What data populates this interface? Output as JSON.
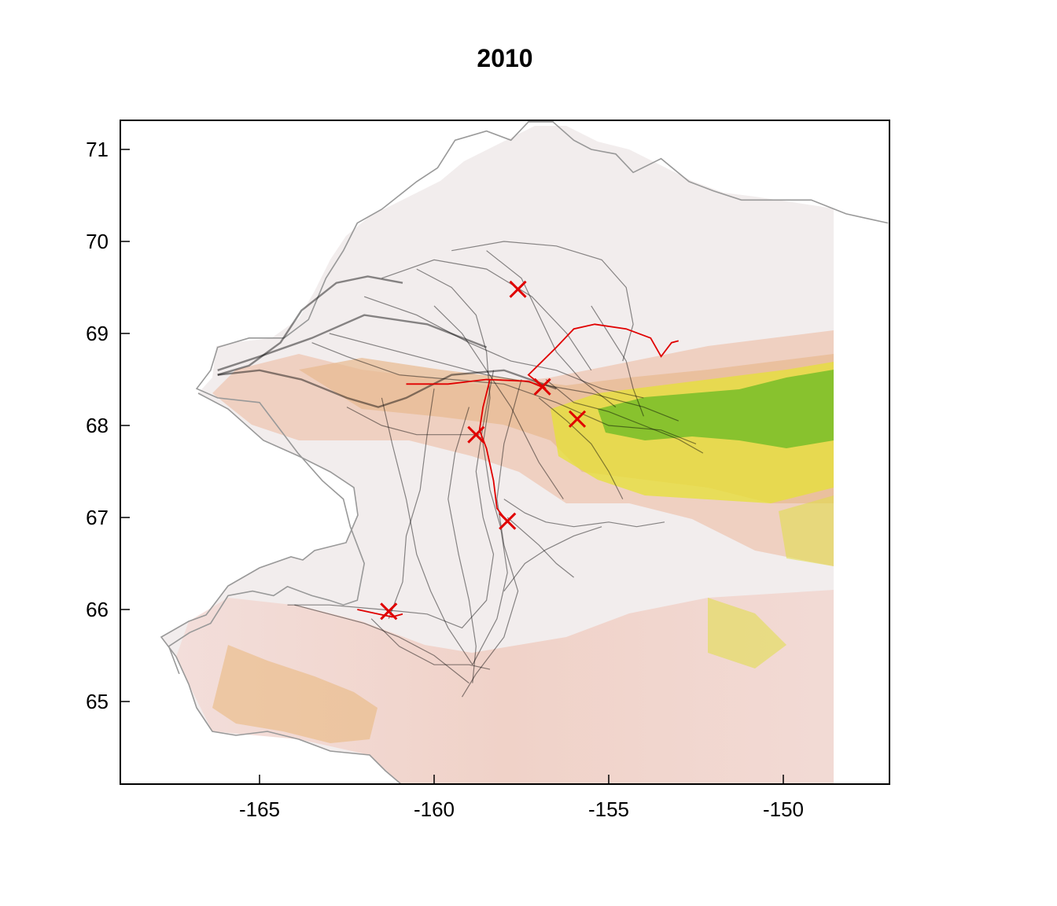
{
  "title": "2010",
  "axes": {
    "x_ticks": [
      -165,
      -160,
      -155,
      -150
    ],
    "x_tick_labels": [
      "-165",
      "-160",
      "-155",
      "-150"
    ],
    "y_ticks": [
      65,
      66,
      67,
      68,
      69,
      70,
      71
    ],
    "y_tick_labels": [
      "65",
      "66",
      "67",
      "68",
      "69",
      "70",
      "71"
    ],
    "xlim": [
      -169,
      -147
    ],
    "ylim": [
      64.1,
      71.3
    ]
  },
  "colors": {
    "track": "#000000",
    "highlight_track": "#e00000",
    "marker": "#e00000",
    "coastline": "#999999"
  },
  "markers": [
    {
      "lon": -157.6,
      "lat": 69.48
    },
    {
      "lon": -156.9,
      "lat": 68.42
    },
    {
      "lon": -155.9,
      "lat": 68.07
    },
    {
      "lon": -158.8,
      "lat": 67.9
    },
    {
      "lon": -157.9,
      "lat": 66.96
    },
    {
      "lon": -161.3,
      "lat": 65.98
    }
  ],
  "highlight_track": [
    [
      -160.8,
      68.45
    ],
    [
      -159.6,
      68.45
    ],
    [
      -158.5,
      68.5
    ],
    [
      -157.3,
      68.48
    ],
    [
      -156.8,
      68.4
    ],
    [
      -157.3,
      68.55
    ],
    [
      -156.5,
      68.85
    ],
    [
      -156.0,
      69.05
    ],
    [
      -155.4,
      69.1
    ],
    [
      -154.5,
      69.05
    ],
    [
      -153.8,
      68.95
    ],
    [
      -153.5,
      68.75
    ],
    [
      -153.2,
      68.9
    ],
    [
      -153.0,
      68.92
    ]
  ],
  "highlight_track_2": [
    [
      -158.4,
      68.5
    ],
    [
      -158.6,
      68.2
    ],
    [
      -158.7,
      67.95
    ],
    [
      -158.5,
      67.75
    ],
    [
      -158.3,
      67.4
    ],
    [
      -158.2,
      67.1
    ],
    [
      -157.9,
      66.95
    ]
  ],
  "highlight_track_3": [
    [
      -162.2,
      66.0
    ],
    [
      -161.6,
      65.95
    ],
    [
      -161.2,
      65.92
    ],
    [
      -160.9,
      65.95
    ]
  ],
  "tracks": [
    [
      [
        -166.2,
        68.55
      ],
      [
        -165.3,
        68.65
      ],
      [
        -164.4,
        68.9
      ],
      [
        -163.8,
        69.25
      ],
      [
        -162.8,
        69.55
      ],
      [
        -161.9,
        69.62
      ],
      [
        -160.9,
        69.55
      ]
    ],
    [
      [
        -166.2,
        68.6
      ],
      [
        -165.0,
        68.75
      ],
      [
        -163.5,
        68.95
      ],
      [
        -162.0,
        69.2
      ],
      [
        -160.2,
        69.1
      ],
      [
        -158.5,
        68.85
      ]
    ],
    [
      [
        -166.2,
        68.55
      ],
      [
        -165.0,
        68.6
      ],
      [
        -163.8,
        68.5
      ],
      [
        -162.5,
        68.3
      ],
      [
        -161.6,
        68.2
      ],
      [
        -160.8,
        68.3
      ],
      [
        -159.5,
        68.55
      ],
      [
        -158.0,
        68.6
      ],
      [
        -156.5,
        68.4
      ]
    ],
    [
      [
        -163.5,
        68.9
      ],
      [
        -162.5,
        68.75
      ],
      [
        -161.0,
        68.55
      ],
      [
        -159.5,
        68.5
      ],
      [
        -158.0,
        68.45
      ],
      [
        -156.5,
        68.25
      ],
      [
        -155.0,
        68.0
      ],
      [
        -153.5,
        67.95
      ],
      [
        -152.5,
        67.8
      ]
    ],
    [
      [
        -163.0,
        69.0
      ],
      [
        -161.5,
        68.85
      ],
      [
        -160.0,
        68.7
      ],
      [
        -158.5,
        68.55
      ],
      [
        -157.0,
        68.45
      ],
      [
        -155.5,
        68.35
      ],
      [
        -154.0,
        68.2
      ],
      [
        -153.0,
        68.05
      ]
    ],
    [
      [
        -162.0,
        69.4
      ],
      [
        -160.5,
        69.2
      ],
      [
        -159.0,
        68.9
      ],
      [
        -157.8,
        68.7
      ],
      [
        -156.5,
        68.6
      ],
      [
        -155.2,
        68.4
      ],
      [
        -154.0,
        68.3
      ]
    ],
    [
      [
        -160.5,
        69.7
      ],
      [
        -159.5,
        69.5
      ],
      [
        -158.8,
        69.2
      ],
      [
        -158.5,
        68.8
      ],
      [
        -158.4,
        68.3
      ],
      [
        -158.6,
        67.8
      ],
      [
        -158.4,
        67.3
      ],
      [
        -158.1,
        66.9
      ],
      [
        -157.9,
        66.4
      ],
      [
        -158.2,
        65.9
      ],
      [
        -158.9,
        65.4
      ]
    ],
    [
      [
        -158.3,
        68.6
      ],
      [
        -158.6,
        68.0
      ],
      [
        -158.8,
        67.5
      ],
      [
        -158.6,
        67.0
      ],
      [
        -158.3,
        66.6
      ],
      [
        -158.5,
        66.1
      ],
      [
        -159.2,
        65.8
      ],
      [
        -160.2,
        65.95
      ],
      [
        -161.5,
        66.0
      ],
      [
        -163.0,
        66.05
      ],
      [
        -164.2,
        66.05
      ]
    ],
    [
      [
        -157.5,
        68.5
      ],
      [
        -158.0,
        67.8
      ],
      [
        -158.2,
        67.2
      ],
      [
        -158.0,
        66.7
      ],
      [
        -157.6,
        66.2
      ],
      [
        -158.0,
        65.7
      ],
      [
        -158.8,
        65.3
      ],
      [
        -159.2,
        65.05
      ]
    ],
    [
      [
        -159.0,
        68.2
      ],
      [
        -159.4,
        67.7
      ],
      [
        -159.6,
        67.2
      ],
      [
        -159.3,
        66.6
      ],
      [
        -159.0,
        66.1
      ],
      [
        -158.8,
        65.6
      ],
      [
        -158.9,
        65.2
      ]
    ],
    [
      [
        -160.0,
        68.4
      ],
      [
        -160.2,
        67.9
      ],
      [
        -160.4,
        67.3
      ],
      [
        -160.8,
        66.8
      ],
      [
        -160.9,
        66.3
      ],
      [
        -161.3,
        65.9
      ]
    ],
    [
      [
        -161.5,
        68.3
      ],
      [
        -161.2,
        67.8
      ],
      [
        -160.8,
        67.2
      ],
      [
        -160.5,
        66.6
      ],
      [
        -160.1,
        66.2
      ],
      [
        -159.6,
        65.8
      ],
      [
        -158.9,
        65.4
      ]
    ],
    [
      [
        -158.0,
        67.2
      ],
      [
        -157.4,
        67.05
      ],
      [
        -156.8,
        66.95
      ],
      [
        -156.0,
        66.9
      ],
      [
        -155.0,
        66.95
      ],
      [
        -154.2,
        66.9
      ],
      [
        -153.4,
        66.95
      ]
    ],
    [
      [
        -157.9,
        67.0
      ],
      [
        -157.0,
        66.7
      ],
      [
        -156.5,
        66.5
      ],
      [
        -156.0,
        66.35
      ]
    ],
    [
      [
        -161.8,
        65.9
      ],
      [
        -161.0,
        65.6
      ],
      [
        -160.0,
        65.4
      ],
      [
        -159.0,
        65.4
      ],
      [
        -158.4,
        65.35
      ]
    ],
    [
      [
        -164.0,
        66.05
      ],
      [
        -163.0,
        65.95
      ],
      [
        -162.0,
        65.85
      ],
      [
        -161.0,
        65.7
      ],
      [
        -160.0,
        65.5
      ],
      [
        -159.0,
        65.2
      ]
    ],
    [
      [
        -159.5,
        69.9
      ],
      [
        -158.0,
        70.0
      ],
      [
        -156.5,
        69.95
      ],
      [
        -155.2,
        69.8
      ],
      [
        -154.5,
        69.5
      ],
      [
        -154.3,
        69.1
      ],
      [
        -154.6,
        68.7
      ]
    ],
    [
      [
        -161.5,
        69.6
      ],
      [
        -160.0,
        69.8
      ],
      [
        -158.5,
        69.7
      ],
      [
        -157.2,
        69.4
      ],
      [
        -156.2,
        69.0
      ],
      [
        -155.5,
        68.6
      ]
    ],
    [
      [
        -158.5,
        69.9
      ],
      [
        -157.5,
        69.6
      ],
      [
        -157.0,
        69.2
      ],
      [
        -156.5,
        68.8
      ],
      [
        -155.8,
        68.5
      ],
      [
        -154.8,
        68.2
      ]
    ],
    [
      [
        -156.8,
        68.5
      ],
      [
        -156.0,
        68.25
      ],
      [
        -155.0,
        68.15
      ],
      [
        -154.0,
        68.0
      ],
      [
        -153.0,
        67.85
      ],
      [
        -152.3,
        67.7
      ]
    ],
    [
      [
        -157.0,
        68.3
      ],
      [
        -156.2,
        68.05
      ],
      [
        -155.5,
        67.8
      ],
      [
        -155.0,
        67.5
      ],
      [
        -154.6,
        67.2
      ]
    ],
    [
      [
        -155.5,
        69.3
      ],
      [
        -155.0,
        69.0
      ],
      [
        -154.5,
        68.7
      ],
      [
        -154.3,
        68.4
      ],
      [
        -154.0,
        68.1
      ]
    ],
    [
      [
        -162.5,
        68.2
      ],
      [
        -161.5,
        68.0
      ],
      [
        -160.5,
        67.9
      ],
      [
        -159.5,
        67.9
      ],
      [
        -158.7,
        67.9
      ]
    ],
    [
      [
        -160.0,
        69.3
      ],
      [
        -159.2,
        69.0
      ],
      [
        -158.5,
        68.6
      ],
      [
        -157.8,
        68.2
      ],
      [
        -157.0,
        67.6
      ],
      [
        -156.3,
        67.2
      ]
    ],
    [
      [
        -158.0,
        66.2
      ],
      [
        -157.4,
        66.5
      ],
      [
        -156.8,
        66.65
      ],
      [
        -156.0,
        66.8
      ],
      [
        -155.2,
        66.9
      ]
    ]
  ],
  "coastline": [
    [
      -167.3,
      65.3
    ],
    [
      -167.6,
      65.6
    ],
    [
      -167.0,
      65.75
    ],
    [
      -166.4,
      65.85
    ],
    [
      -165.9,
      66.15
    ],
    [
      -165.2,
      66.2
    ],
    [
      -164.6,
      66.15
    ],
    [
      -164.2,
      66.25
    ],
    [
      -163.5,
      66.15
    ],
    [
      -163.0,
      66.1
    ],
    [
      -162.6,
      66.05
    ],
    [
      -162.2,
      66.1
    ],
    [
      -162.0,
      66.5
    ],
    [
      -162.4,
      66.9
    ],
    [
      -162.6,
      67.2
    ],
    [
      -163.2,
      67.4
    ],
    [
      -163.9,
      67.7
    ],
    [
      -164.5,
      68.0
    ],
    [
      -165.0,
      68.25
    ],
    [
      -166.2,
      68.3
    ],
    [
      -166.8,
      68.4
    ],
    [
      -166.4,
      68.6
    ],
    [
      -166.2,
      68.85
    ],
    [
      -165.3,
      68.95
    ],
    [
      -164.3,
      68.95
    ],
    [
      -163.6,
      69.15
    ],
    [
      -163.1,
      69.6
    ],
    [
      -162.6,
      69.9
    ],
    [
      -162.2,
      70.2
    ],
    [
      -161.5,
      70.35
    ],
    [
      -160.5,
      70.65
    ],
    [
      -159.9,
      70.8
    ],
    [
      -159.4,
      71.1
    ],
    [
      -158.5,
      71.2
    ],
    [
      -157.8,
      71.1
    ],
    [
      -157.3,
      71.3
    ],
    [
      -156.6,
      71.3
    ],
    [
      -156.0,
      71.1
    ],
    [
      -155.5,
      71.0
    ],
    [
      -154.8,
      70.95
    ],
    [
      -154.3,
      70.75
    ],
    [
      -153.5,
      70.9
    ],
    [
      -152.7,
      70.65
    ],
    [
      -152.0,
      70.55
    ],
    [
      -151.2,
      70.45
    ],
    [
      -150.2,
      70.45
    ],
    [
      -149.2,
      70.45
    ],
    [
      -148.2,
      70.3
    ],
    [
      -147.6,
      70.25
    ],
    [
      -147.0,
      70.2
    ]
  ]
}
